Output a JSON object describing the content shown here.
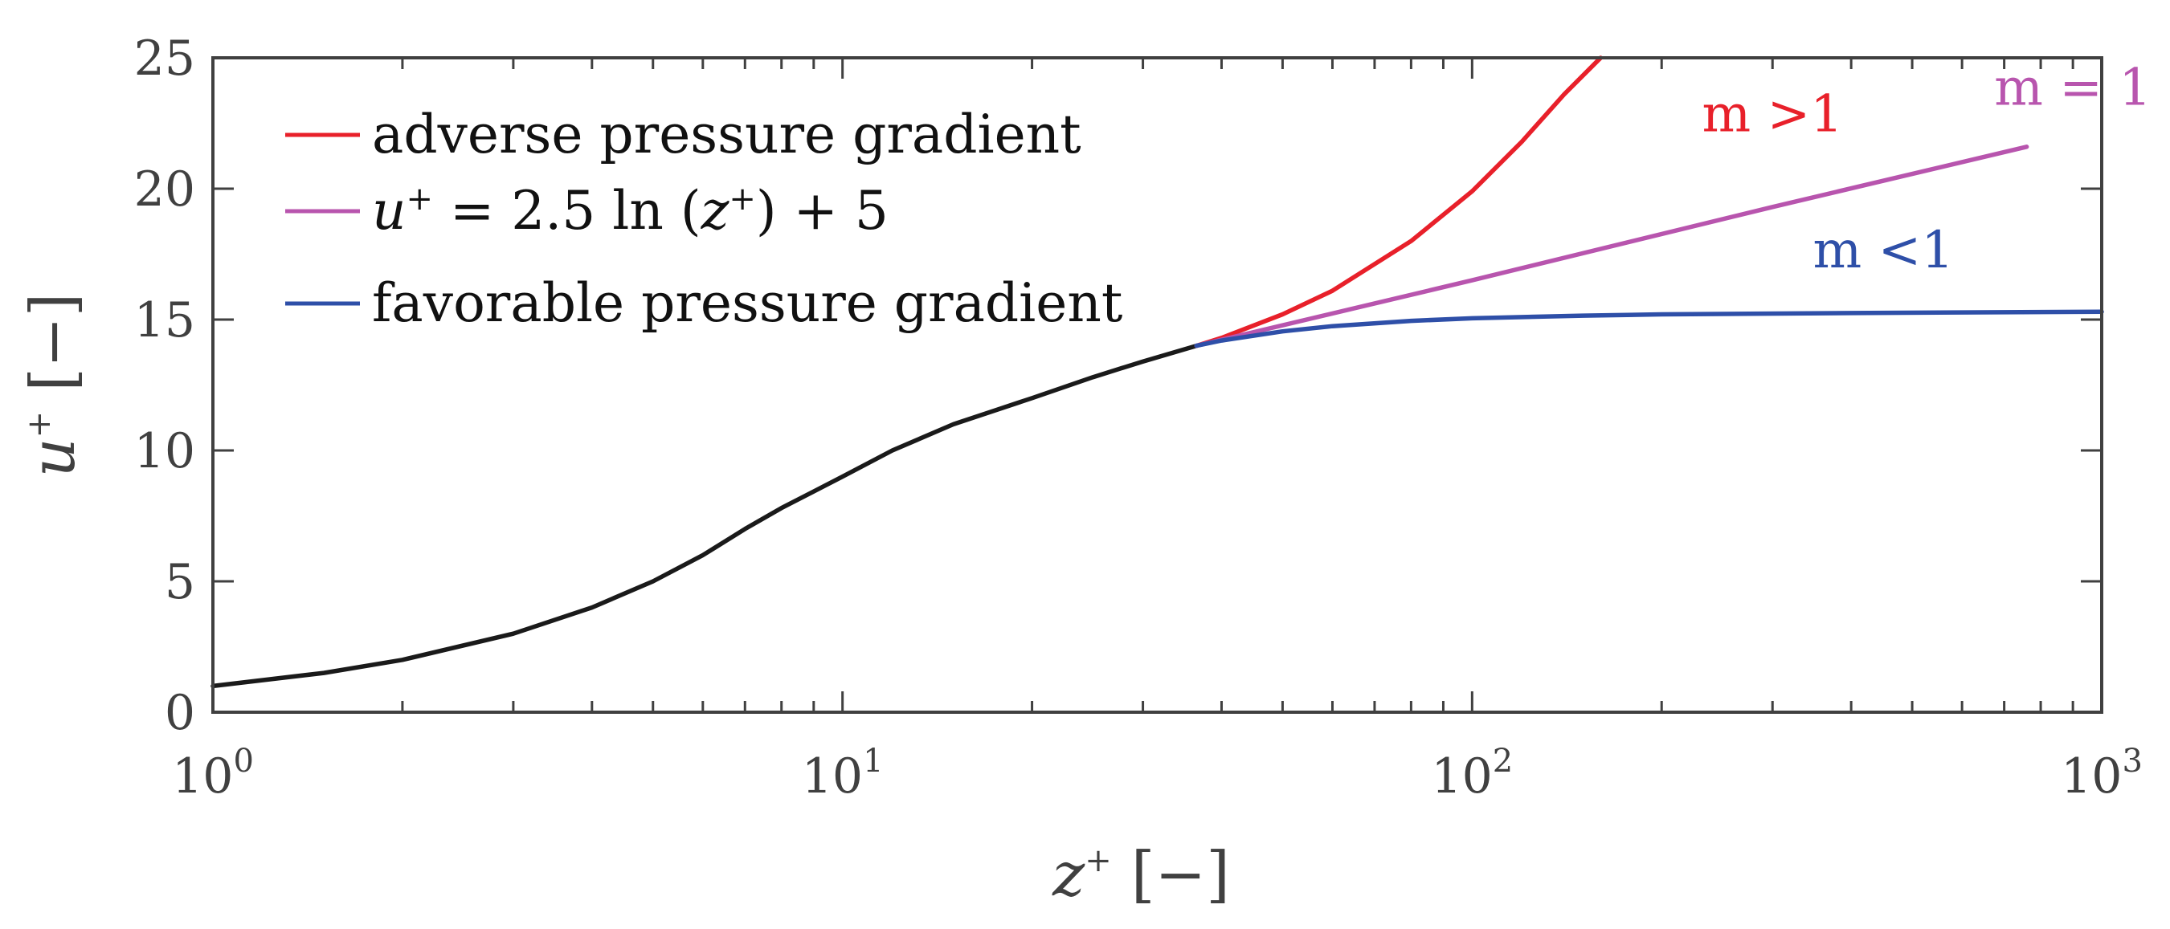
{
  "chart_data": {
    "type": "line",
    "xscale": "log",
    "xlim": [
      1,
      1000
    ],
    "ylim": [
      0,
      25
    ],
    "grid": false,
    "legend_position": "top-left",
    "xlabel": {
      "var": "z",
      "sup": "+",
      "units": "[−]"
    },
    "ylabel": {
      "var": "u",
      "sup": "+",
      "units": "[−]"
    },
    "xticks": [
      {
        "value": 1,
        "base": "10",
        "exp": "0"
      },
      {
        "value": 10,
        "base": "10",
        "exp": "1"
      },
      {
        "value": 100,
        "base": "10",
        "exp": "2"
      },
      {
        "value": 1000,
        "base": "10",
        "exp": "3"
      }
    ],
    "yticks": [
      {
        "value": 0,
        "label": "0"
      },
      {
        "value": 5,
        "label": "5"
      },
      {
        "value": 10,
        "label": "10"
      },
      {
        "value": 15,
        "label": "15"
      },
      {
        "value": 20,
        "label": "20"
      },
      {
        "value": 25,
        "label": "25"
      }
    ],
    "series": [
      {
        "key": "common",
        "color": "#1a1a1a",
        "x": [
          1,
          1.5,
          2,
          3,
          4,
          5,
          6,
          7,
          8,
          10,
          12,
          15,
          20,
          25,
          30,
          36.5
        ],
        "y": [
          1.0,
          1.5,
          2.0,
          3.0,
          4.0,
          5.0,
          6.0,
          7.0,
          7.8,
          9.0,
          10.0,
          11.0,
          12.0,
          12.8,
          13.4,
          14.0
        ]
      },
      {
        "key": "adverse",
        "name": "adverse pressure gradient",
        "color": "#e8202a",
        "x": [
          36.5,
          40,
          50,
          60,
          80,
          100,
          120,
          140,
          160
        ],
        "y": [
          14.0,
          14.3,
          15.2,
          16.1,
          18.0,
          19.9,
          21.8,
          23.6,
          25.0
        ]
      },
      {
        "key": "log-law",
        "name_parts": {
          "lhs": "u",
          "sup1": "+",
          "rhs_a": " = 2.5 ln (",
          "arg": "z",
          "sup2": "+",
          "rhs_b": ") + 5"
        },
        "color": "#b855ae",
        "x": [
          36.5,
          100,
          300,
          760
        ],
        "y": [
          14.0,
          16.5,
          19.3,
          21.6
        ]
      },
      {
        "key": "favorable",
        "name": "favorable pressure gradient",
        "color": "#2e4fa8",
        "x": [
          36.5,
          40,
          50,
          60,
          80,
          100,
          150,
          200,
          400,
          1000
        ],
        "y": [
          14.0,
          14.2,
          14.55,
          14.75,
          14.95,
          15.05,
          15.15,
          15.2,
          15.25,
          15.3
        ]
      }
    ],
    "annotations": [
      {
        "key": "m-gt-1",
        "text": "m >1",
        "color": "#e8202a",
        "x": 300,
        "y": 22.2
      },
      {
        "key": "m-eq-1",
        "text": "m = 1",
        "color": "#b855ae",
        "x": 900,
        "y": 23.2
      },
      {
        "key": "m-lt-1",
        "text": "m <1",
        "color": "#2e4fa8",
        "x": 450,
        "y": 17.0
      }
    ]
  }
}
